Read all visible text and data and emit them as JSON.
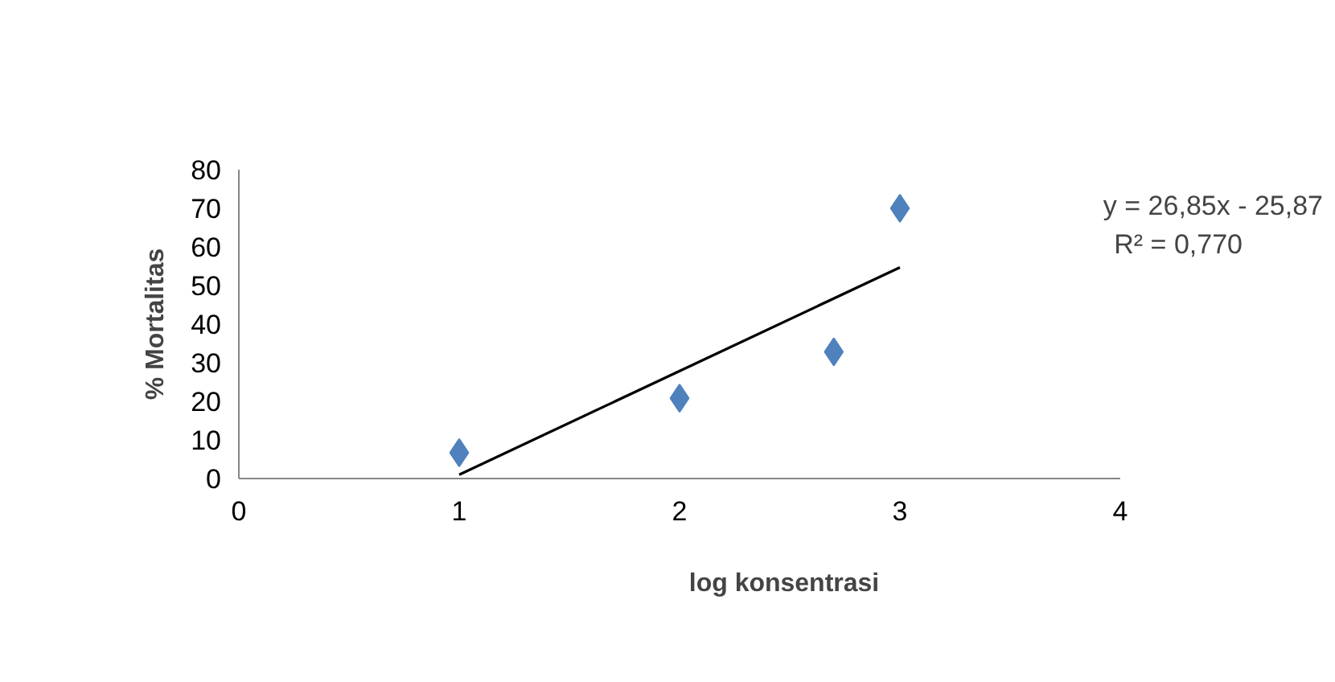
{
  "chart_data": {
    "type": "scatter",
    "xlabel": "log konsentrasi",
    "ylabel": "% Mortalitas",
    "xlim": [
      0,
      4
    ],
    "ylim": [
      0,
      80
    ],
    "xticks": [
      0,
      1,
      2,
      3,
      4
    ],
    "yticks": [
      0,
      10,
      20,
      30,
      40,
      50,
      60,
      70,
      80
    ],
    "grid": false,
    "marker": "diamond",
    "series": [
      {
        "color": "#4f81bd",
        "x": [
          1,
          2,
          2.7,
          3
        ],
        "values": [
          6.7,
          20.8,
          32.8,
          70
        ]
      },
      {
        "type": "line",
        "marker": "none",
        "color": "#000000",
        "x": [
          1,
          3
        ],
        "values": [
          1.0,
          54.7
        ]
      }
    ],
    "annotations": [
      "y = 26,85x - 25,87",
      "R² = 0,770"
    ]
  }
}
